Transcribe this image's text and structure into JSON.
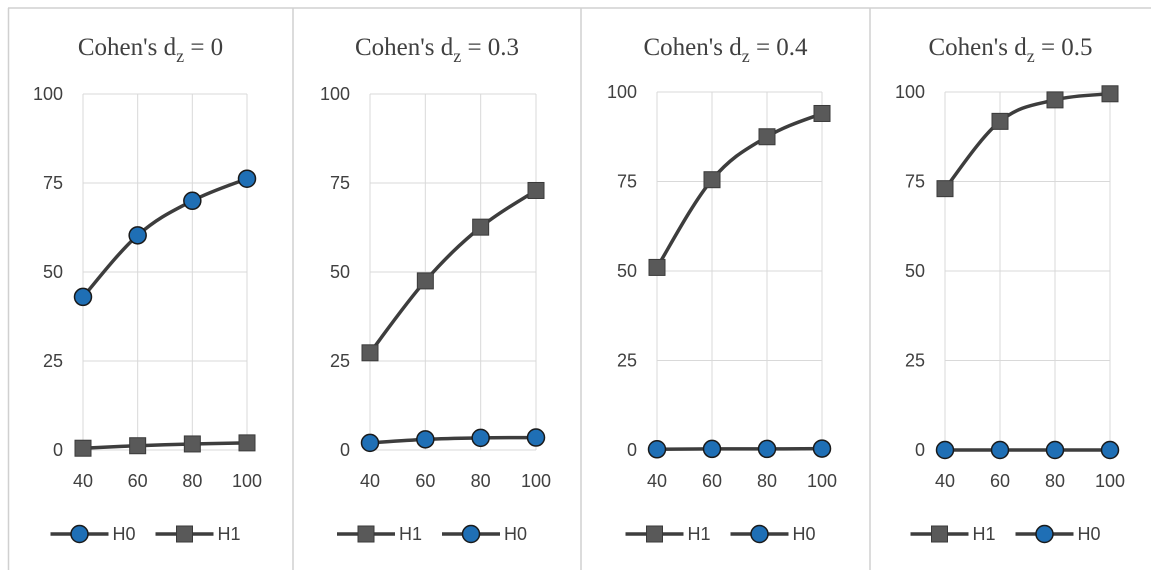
{
  "colors": {
    "line": "#3d3d3d",
    "marker_circle": "#1f6fb5",
    "marker_square": "#595959",
    "grid": "#d9d9d9",
    "text": "#404040"
  },
  "chart_data": [
    {
      "type": "line",
      "title": "Cohen's d",
      "title_sub": "z",
      "title_tail": " = 0",
      "x": [
        40,
        60,
        80,
        100
      ],
      "x_ticks": [
        "40",
        "60",
        "80",
        "100"
      ],
      "y_ticks": [
        "0",
        "25",
        "50",
        "75",
        "100"
      ],
      "ylim": [
        0,
        100
      ],
      "grid": "vertical and horizontal",
      "legend_position": "bottom",
      "series": [
        {
          "name": "H0",
          "marker": "circle",
          "values": [
            43,
            60.3,
            70,
            76.2
          ]
        },
        {
          "name": "H1",
          "marker": "square",
          "values": [
            0.5,
            1.2,
            1.7,
            2
          ]
        }
      ]
    },
    {
      "type": "line",
      "title": "Cohen's d",
      "title_sub": "z",
      "title_tail": " = 0.3",
      "x": [
        40,
        60,
        80,
        100
      ],
      "x_ticks": [
        "40",
        "60",
        "80",
        "100"
      ],
      "y_ticks": [
        "0",
        "25",
        "50",
        "75",
        "100"
      ],
      "ylim": [
        0,
        100
      ],
      "grid": "vertical and horizontal",
      "legend_position": "bottom",
      "series": [
        {
          "name": "H1",
          "marker": "square",
          "values": [
            27.3,
            47.5,
            62.6,
            72.9
          ]
        },
        {
          "name": "H0",
          "marker": "circle",
          "values": [
            2,
            3,
            3.4,
            3.5
          ]
        }
      ]
    },
    {
      "type": "line",
      "title": "Cohen's d",
      "title_sub": "z",
      "title_tail": " = 0.4",
      "x": [
        40,
        60,
        80,
        100
      ],
      "x_ticks": [
        "40",
        "60",
        "80",
        "100"
      ],
      "y_ticks": [
        "0",
        "25",
        "50",
        "75",
        "100"
      ],
      "ylim": [
        0,
        100
      ],
      "grid": "vertical and horizontal",
      "legend_position": "bottom",
      "series": [
        {
          "name": "H1",
          "marker": "square",
          "values": [
            51,
            75.5,
            87.5,
            94
          ]
        },
        {
          "name": "H0",
          "marker": "circle",
          "values": [
            0.2,
            0.3,
            0.3,
            0.4
          ]
        }
      ]
    },
    {
      "type": "line",
      "title": "Cohen's d",
      "title_sub": "z",
      "title_tail": " = 0.5",
      "x": [
        40,
        60,
        80,
        100
      ],
      "x_ticks": [
        "40",
        "60",
        "80",
        "100"
      ],
      "y_ticks": [
        "0",
        "25",
        "50",
        "75",
        "100"
      ],
      "ylim": [
        0,
        100
      ],
      "grid": "vertical and horizontal",
      "legend_position": "bottom",
      "series": [
        {
          "name": "H1",
          "marker": "square",
          "values": [
            73,
            91.8,
            97.8,
            99.5
          ]
        },
        {
          "name": "H0",
          "marker": "circle",
          "values": [
            0,
            0,
            0,
            0
          ]
        }
      ]
    }
  ]
}
